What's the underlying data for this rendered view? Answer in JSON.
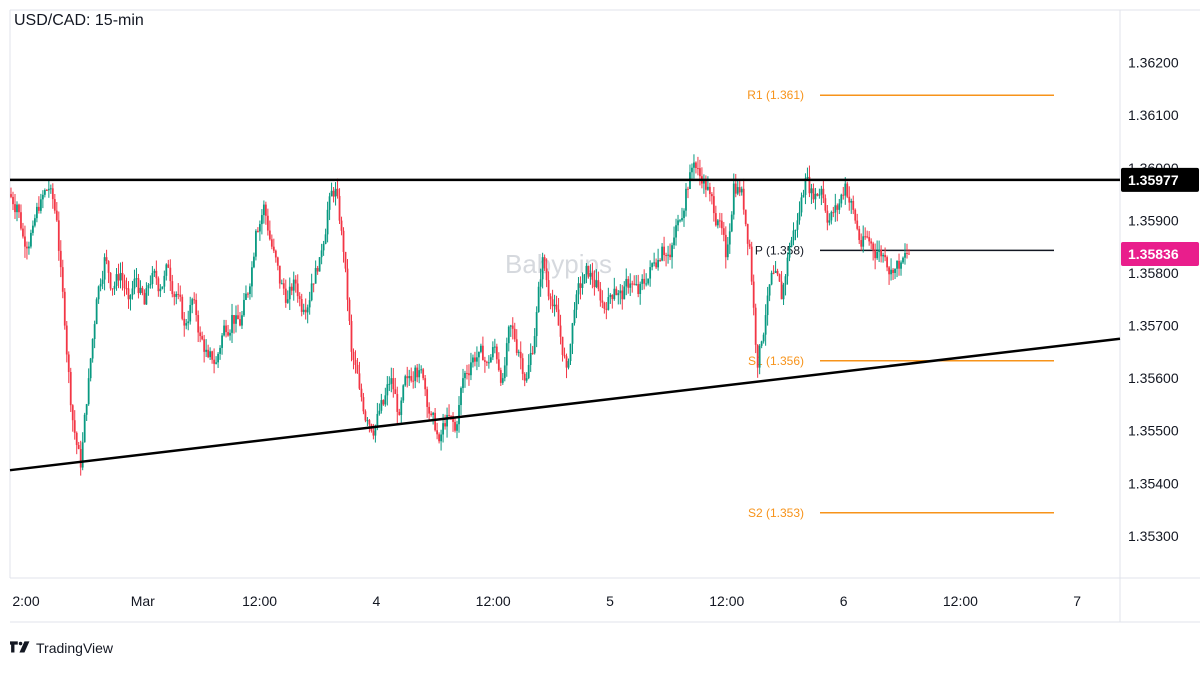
{
  "chart_data": {
    "type": "candlestick",
    "title": "USD/CAD: 15-min",
    "watermark": "Babypips",
    "y_ticks": [
      "1.36200",
      "1.36100",
      "1.36000",
      "1.35900",
      "1.35800",
      "1.35700",
      "1.35600",
      "1.35500",
      "1.35400",
      "1.35300"
    ],
    "y_tick_values": [
      1.362,
      1.361,
      1.36,
      1.359,
      1.358,
      1.357,
      1.356,
      1.355,
      1.354,
      1.353
    ],
    "ylim": [
      1.3522,
      1.363
    ],
    "x_ticks": [
      "2:00",
      "Mar",
      "12:00",
      "4",
      "12:00",
      "5",
      "12:00",
      "6",
      "12:00",
      "7"
    ],
    "levels": [
      {
        "label": "R1 (1.361)",
        "value": 1.36138,
        "color": "#f7931a"
      },
      {
        "label": "P (1.358)",
        "value": 1.35843,
        "color": "#131722"
      },
      {
        "label": "S1 (1.356)",
        "value": 1.35633,
        "color": "#f7931a"
      },
      {
        "label": "S2 (1.353)",
        "value": 1.35344,
        "color": "#f7931a"
      }
    ],
    "resistance": {
      "value": 1.35977,
      "label": "1.35977",
      "color": "#000000"
    },
    "current_price": {
      "value": 1.35836,
      "label": "1.35836",
      "color": "#e91e8c"
    },
    "trendline": {
      "start": 1.35425,
      "end": 1.35675,
      "color": "#000000"
    },
    "colors": {
      "up": "#089981",
      "down": "#f23645"
    },
    "closes": [
      1.3593,
      1.3585,
      1.3589,
      1.3594,
      1.3596,
      1.359,
      1.357,
      1.3552,
      1.3543,
      1.356,
      1.3575,
      1.3583,
      1.3577,
      1.358,
      1.3575,
      1.3579,
      1.3574,
      1.358,
      1.3577,
      1.3581,
      1.3576,
      1.357,
      1.3575,
      1.3568,
      1.3564,
      1.3563,
      1.357,
      1.3572,
      1.357,
      1.3576,
      1.3588,
      1.3593,
      1.3585,
      1.3578,
      1.3575,
      1.3578,
      1.3573,
      1.3578,
      1.3583,
      1.3592,
      1.3596,
      1.3584,
      1.3565,
      1.3558,
      1.3552,
      1.3551,
      1.3555,
      1.356,
      1.3553,
      1.356,
      1.3562,
      1.356,
      1.3553,
      1.3548,
      1.3553,
      1.355,
      1.356,
      1.3563,
      1.3565,
      1.3563,
      1.3566,
      1.356,
      1.357,
      1.3565,
      1.356,
      1.3568,
      1.3583,
      1.3575,
      1.357,
      1.3562,
      1.3573,
      1.3578,
      1.358,
      1.3577,
      1.3573,
      1.3577,
      1.3575,
      1.3578,
      1.3576,
      1.3578,
      1.3582,
      1.3585,
      1.3583,
      1.359,
      1.3596,
      1.3601,
      1.3597,
      1.3595,
      1.359,
      1.3583,
      1.3597,
      1.3596,
      1.3585,
      1.3562,
      1.3572,
      1.358,
      1.3575,
      1.3585,
      1.359,
      1.3598,
      1.3594,
      1.3596,
      1.359,
      1.3592,
      1.3597,
      1.3592,
      1.3585,
      1.3586,
      1.3584,
      1.3583,
      1.358,
      1.3582,
      1.35836
    ]
  },
  "footer": {
    "brand": "TradingView"
  }
}
